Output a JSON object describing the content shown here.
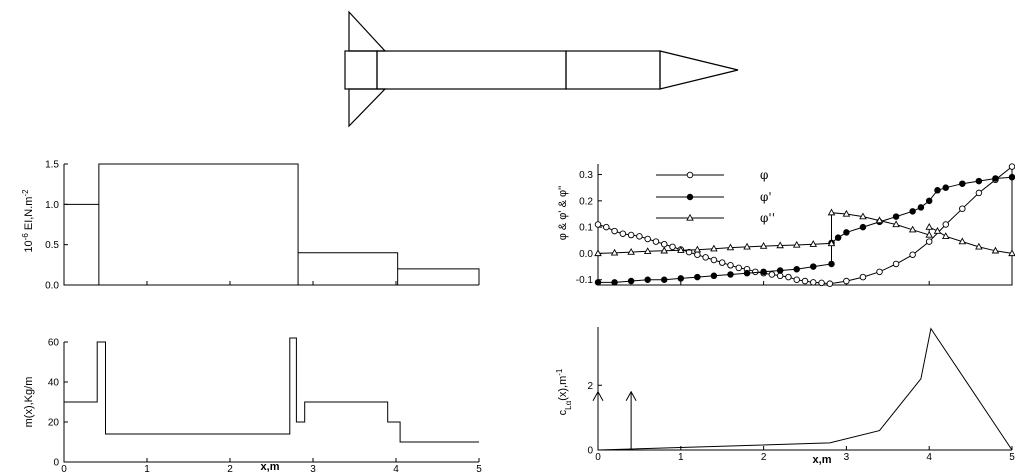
{
  "chart_data": [
    {
      "id": "ei",
      "type": "line",
      "step": true,
      "ylabel": "10-6 EI,N.m-2",
      "ylabel_parts": {
        "prefix": "10",
        "sup1": "-6",
        "mid": " EI,N.m",
        "sup2": "-2"
      },
      "xlim": [
        0,
        5
      ],
      "ylim": [
        0,
        1.5
      ],
      "yticks": [
        "0.0",
        "0.5",
        "1.0",
        "1.5"
      ],
      "yticks_values": [
        0,
        0.5,
        1.0,
        1.5
      ],
      "segments": [
        {
          "x0": 0,
          "x1": 0.42,
          "y": 1.0
        },
        {
          "x0": 0.42,
          "x1": 2.82,
          "y": 1.5
        },
        {
          "x0": 2.82,
          "x1": 4.02,
          "y": 0.4
        },
        {
          "x0": 4.02,
          "x1": 5.0,
          "y": 0.2
        }
      ]
    },
    {
      "id": "mass",
      "type": "line",
      "step": true,
      "ylabel": "m(x),Kg/m",
      "xlabel": "x,m",
      "xlim": [
        0,
        5
      ],
      "ylim": [
        0,
        60
      ],
      "xticks": [
        "0",
        "1",
        "2",
        "3",
        "4",
        "5"
      ],
      "xticks_values": [
        0,
        1,
        2,
        3,
        4,
        5
      ],
      "yticks": [
        "0",
        "20",
        "40",
        "60"
      ],
      "yticks_values": [
        0,
        20,
        40,
        60
      ],
      "points": [
        [
          0,
          30
        ],
        [
          0.4,
          30
        ],
        [
          0.4,
          60
        ],
        [
          0.5,
          60
        ],
        [
          0.5,
          14
        ],
        [
          2.72,
          14
        ],
        [
          2.72,
          62
        ],
        [
          2.8,
          62
        ],
        [
          2.8,
          20
        ],
        [
          2.9,
          20
        ],
        [
          2.9,
          30
        ],
        [
          3.9,
          30
        ],
        [
          3.9,
          20
        ],
        [
          4.05,
          20
        ],
        [
          4.05,
          10
        ],
        [
          5.0,
          10
        ]
      ]
    },
    {
      "id": "modes",
      "type": "line",
      "ylabel": "φ & φ' & φ''",
      "xlim": [
        0,
        5
      ],
      "ylim": [
        -0.12,
        0.34
      ],
      "yticks": [
        "-0.1",
        "0.0",
        "0.1",
        "0.2",
        "0.3"
      ],
      "yticks_values": [
        -0.1,
        0.0,
        0.1,
        0.2,
        0.3
      ],
      "series": [
        {
          "name": "φ",
          "marker": "open-circle",
          "x": [
            0,
            0.1,
            0.2,
            0.3,
            0.4,
            0.5,
            0.6,
            0.7,
            0.8,
            0.9,
            1.0,
            1.1,
            1.2,
            1.3,
            1.4,
            1.5,
            1.6,
            1.7,
            1.8,
            1.9,
            2.0,
            2.1,
            2.2,
            2.3,
            2.4,
            2.5,
            2.6,
            2.7,
            2.8,
            3.0,
            3.2,
            3.4,
            3.6,
            3.8,
            4.0,
            4.2,
            4.4,
            4.6,
            4.8,
            5.0
          ],
          "y": [
            0.11,
            0.1,
            0.085,
            0.075,
            0.07,
            0.065,
            0.055,
            0.045,
            0.035,
            0.025,
            0.015,
            0.005,
            -0.005,
            -0.015,
            -0.025,
            -0.035,
            -0.045,
            -0.055,
            -0.06,
            -0.07,
            -0.075,
            -0.08,
            -0.085,
            -0.09,
            -0.1,
            -0.105,
            -0.11,
            -0.112,
            -0.115,
            -0.105,
            -0.09,
            -0.07,
            -0.04,
            -0.005,
            0.045,
            0.11,
            0.17,
            0.23,
            0.28,
            0.33
          ]
        },
        {
          "name": "φ'",
          "marker": "filled-circle",
          "x": [
            0,
            0.2,
            0.4,
            0.6,
            0.8,
            1.0,
            1.2,
            1.4,
            1.6,
            1.8,
            2.0,
            2.2,
            2.4,
            2.6,
            2.82,
            2.82,
            2.9,
            3.0,
            3.2,
            3.4,
            3.6,
            3.8,
            3.9,
            4.0,
            4.1,
            4.2,
            4.4,
            4.6,
            4.8,
            5.0
          ],
          "y": [
            -0.11,
            -0.11,
            -0.105,
            -0.1,
            -0.1,
            -0.095,
            -0.09,
            -0.085,
            -0.08,
            -0.075,
            -0.07,
            -0.065,
            -0.06,
            -0.05,
            -0.04,
            0.04,
            0.06,
            0.08,
            0.1,
            0.12,
            0.14,
            0.16,
            0.175,
            0.2,
            0.24,
            0.25,
            0.265,
            0.275,
            0.285,
            0.29
          ]
        },
        {
          "name": "φ''",
          "marker": "open-triangle",
          "x": [
            0,
            0.2,
            0.4,
            0.6,
            0.8,
            1.0,
            1.2,
            1.4,
            1.6,
            1.8,
            2.0,
            2.2,
            2.4,
            2.6,
            2.82,
            2.82,
            3.0,
            3.2,
            3.4,
            3.6,
            3.8,
            4.0,
            4.0,
            4.1,
            4.2,
            4.4,
            4.6,
            4.8,
            5.0
          ],
          "y": [
            0,
            0.002,
            0.005,
            0.008,
            0.01,
            0.012,
            0.014,
            0.018,
            0.022,
            0.025,
            0.028,
            0.03,
            0.032,
            0.035,
            0.038,
            0.155,
            0.15,
            0.14,
            0.125,
            0.11,
            0.09,
            0.07,
            0.1,
            0.085,
            0.065,
            0.045,
            0.025,
            0.01,
            0.0
          ]
        }
      ],
      "legend_placement": "upper-left"
    },
    {
      "id": "clalpha",
      "type": "line",
      "ylabel": "cLα(x),m-1",
      "xlabel": "x,m",
      "xlim": [
        0,
        5
      ],
      "ylim": [
        0,
        3.8
      ],
      "xticks": [
        "0",
        "1",
        "2",
        "3",
        "4",
        "5"
      ],
      "xticks_values": [
        0,
        1,
        2,
        3,
        4,
        5
      ],
      "yticks": [
        "0",
        "2"
      ],
      "yticks_values": [
        0,
        2
      ],
      "x": [
        0,
        2.8,
        3.4,
        3.9,
        4.02,
        5.0
      ],
      "y": [
        0,
        0.22,
        0.6,
        2.2,
        3.75,
        0
      ],
      "point_loads": [
        {
          "x": 0,
          "y": 1.8
        },
        {
          "x": 0.4,
          "y": 1.8
        }
      ]
    }
  ]
}
